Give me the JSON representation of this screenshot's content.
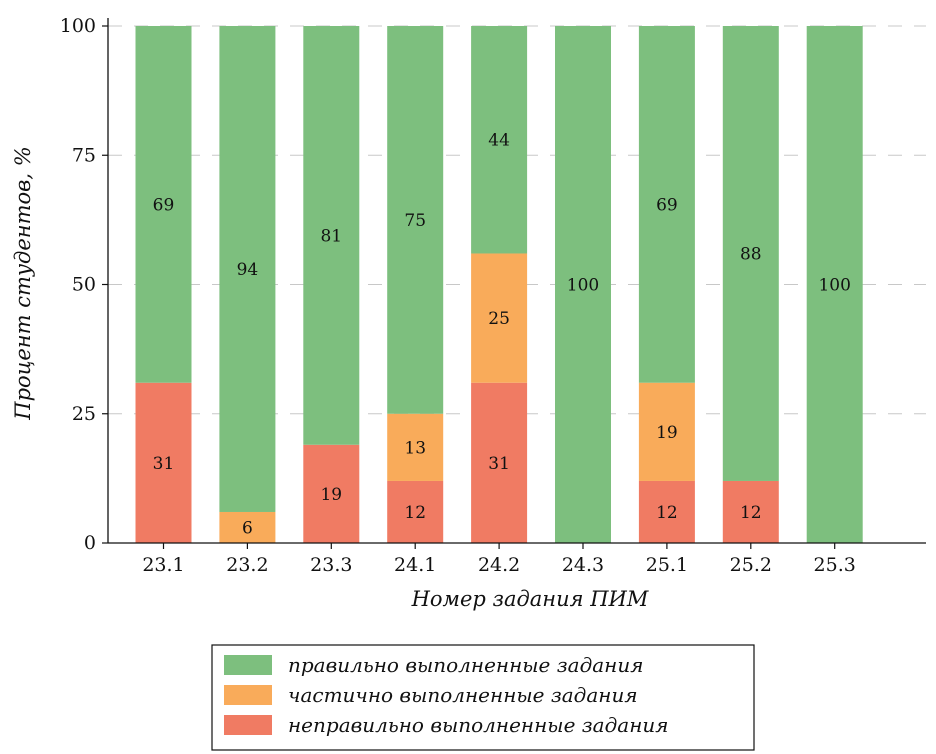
{
  "chart_data": {
    "type": "bar",
    "stacked": true,
    "xlabel": "Номер задания ПИМ",
    "ylabel": "Процент студентов, %",
    "ylim": [
      0,
      100
    ],
    "yticks": [
      0,
      25,
      50,
      75,
      100
    ],
    "grid": "horizontal dashed",
    "legend_position": "bottom-center",
    "categories": [
      "23.1",
      "23.2",
      "23.3",
      "24.1",
      "24.2",
      "24.3",
      "25.1",
      "25.2",
      "25.3"
    ],
    "series": [
      {
        "name": "неправильно выполненные задания",
        "color": "#f07b63",
        "values": [
          31,
          0,
          19,
          12,
          31,
          0,
          12,
          12,
          0
        ]
      },
      {
        "name": "частично выполненные задания",
        "color": "#f9ab5a",
        "values": [
          0,
          6,
          0,
          13,
          25,
          0,
          19,
          0,
          0
        ]
      },
      {
        "name": "правильно выполненные задания",
        "color": "#7dbf7e",
        "values": [
          69,
          94,
          81,
          75,
          44,
          100,
          69,
          88,
          100
        ]
      }
    ],
    "legend_order": [
      2,
      1,
      0
    ]
  }
}
